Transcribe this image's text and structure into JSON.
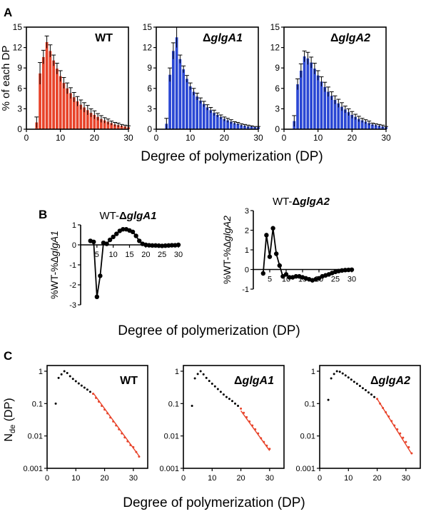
{
  "panel_labels": {
    "a": "A",
    "b": "B",
    "c": "C"
  },
  "colors": {
    "wt_bar": "#e8432a",
    "mutant_bar": "#2a47d4",
    "fit_line": "#e8432a",
    "ink": "#000000"
  },
  "chart_data": [
    {
      "id": "a1",
      "type": "bar",
      "title": "WT",
      "ylabel": "% of each DP",
      "xlim": [
        0,
        30
      ],
      "ylim": [
        0,
        15
      ],
      "xticks": [
        "0",
        "10",
        "20",
        "30"
      ],
      "yticks": [
        "0",
        "3",
        "6",
        "9",
        "12",
        "15"
      ],
      "x": [
        3,
        4,
        5,
        6,
        7,
        8,
        9,
        10,
        11,
        12,
        13,
        14,
        15,
        16,
        17,
        18,
        19,
        20,
        21,
        22,
        23,
        24,
        25,
        26,
        27,
        28,
        29,
        30
      ],
      "values": [
        1.0,
        8.2,
        10.6,
        12.8,
        11.5,
        10.1,
        8.9,
        7.8,
        6.8,
        6.0,
        5.3,
        4.7,
        4.1,
        3.6,
        3.2,
        2.8,
        2.4,
        2.1,
        1.8,
        1.5,
        1.3,
        1.1,
        0.9,
        0.7,
        0.6,
        0.5,
        0.4,
        0.3
      ],
      "errors": [
        0.8,
        1.6,
        1.0,
        0.9,
        0.9,
        0.8,
        0.8,
        0.8,
        0.8,
        0.8,
        0.8,
        0.7,
        0.7,
        0.7,
        0.7,
        0.7,
        0.6,
        0.6,
        0.5,
        0.5,
        0.4,
        0.4,
        0.3,
        0.3,
        0.3,
        0.2,
        0.2,
        0.2
      ]
    },
    {
      "id": "a2",
      "type": "bar",
      "title": "ΔglgA1",
      "xlim": [
        0,
        30
      ],
      "ylim": [
        0,
        15
      ],
      "xticks": [
        "0",
        "10",
        "20",
        "30"
      ],
      "yticks": [
        "0",
        "3",
        "6",
        "9",
        "12",
        "15"
      ],
      "x": [
        3,
        4,
        5,
        6,
        7,
        8,
        9,
        10,
        11,
        12,
        13,
        14,
        15,
        16,
        17,
        18,
        19,
        20,
        21,
        22,
        23,
        24,
        25,
        26,
        27,
        28,
        29,
        30
      ],
      "values": [
        0.8,
        8.0,
        11.5,
        13.5,
        10.3,
        8.8,
        7.4,
        6.3,
        5.5,
        4.8,
        4.2,
        3.7,
        3.2,
        2.8,
        2.4,
        2.1,
        1.8,
        1.5,
        1.3,
        1.1,
        0.9,
        0.8,
        0.6,
        0.5,
        0.4,
        0.4,
        0.3,
        0.3
      ],
      "errors": [
        0.8,
        1.0,
        1.2,
        1.5,
        0.6,
        0.5,
        0.5,
        0.5,
        0.5,
        0.5,
        0.4,
        0.4,
        0.4,
        0.4,
        0.4,
        0.3,
        0.3,
        0.3,
        0.3,
        0.3,
        0.2,
        0.2,
        0.2,
        0.2,
        0.2,
        0.1,
        0.1,
        0.1
      ]
    },
    {
      "id": "a3",
      "type": "bar",
      "title": "ΔglgA2",
      "xlim": [
        0,
        30
      ],
      "ylim": [
        0,
        15
      ],
      "xticks": [
        "0",
        "10",
        "20",
        "30"
      ],
      "yticks": [
        "0",
        "3",
        "6",
        "9",
        "12",
        "15"
      ],
      "x": [
        3,
        4,
        5,
        6,
        7,
        8,
        9,
        10,
        11,
        12,
        13,
        14,
        15,
        16,
        17,
        18,
        19,
        20,
        21,
        22,
        23,
        24,
        25,
        26,
        27,
        28,
        29,
        30
      ],
      "values": [
        1.2,
        6.6,
        8.6,
        10.7,
        10.4,
        9.8,
        8.9,
        7.9,
        7.0,
        6.2,
        5.5,
        4.9,
        4.3,
        3.8,
        3.3,
        2.9,
        2.5,
        2.1,
        1.8,
        1.5,
        1.3,
        1.1,
        0.9,
        0.7,
        0.6,
        0.5,
        0.4,
        0.3
      ],
      "errors": [
        0.8,
        0.8,
        1.0,
        0.8,
        0.9,
        0.8,
        0.8,
        0.7,
        0.7,
        0.7,
        0.7,
        0.6,
        0.6,
        0.6,
        0.6,
        0.5,
        0.5,
        0.5,
        0.4,
        0.4,
        0.3,
        0.3,
        0.3,
        0.2,
        0.2,
        0.2,
        0.2,
        0.1
      ]
    },
    {
      "id": "b1",
      "type": "line",
      "title": "WT-ΔglgA1",
      "ylabel": "%WT-%ΔglgA1",
      "xlim": [
        0,
        30
      ],
      "ylim": [
        -3,
        1
      ],
      "xticks": [
        "5",
        "10",
        "15",
        "20",
        "25",
        "30"
      ],
      "yticks": [
        "-3",
        "-2",
        "-1",
        "0",
        "1"
      ],
      "x": [
        3,
        4,
        5,
        6,
        7,
        8,
        9,
        10,
        11,
        12,
        13,
        14,
        15,
        16,
        17,
        18,
        19,
        20,
        21,
        22,
        23,
        24,
        25,
        26,
        27,
        28,
        29,
        30
      ],
      "y": [
        0.2,
        0.15,
        -2.6,
        -1.55,
        0.1,
        0.05,
        0.25,
        0.4,
        0.55,
        0.7,
        0.78,
        0.78,
        0.72,
        0.65,
        0.45,
        0.2,
        0.05,
        0.0,
        -0.02,
        -0.03,
        -0.03,
        -0.04,
        -0.05,
        -0.04,
        -0.03,
        -0.02,
        -0.02,
        0.0
      ]
    },
    {
      "id": "b2",
      "type": "line",
      "title": "WT-ΔglgA2",
      "ylabel": "%WT-%ΔglgA2",
      "xlim": [
        0,
        30
      ],
      "ylim": [
        -1,
        3
      ],
      "xticks": [
        "5",
        "10",
        "15",
        "20",
        "25",
        "30"
      ],
      "yticks": [
        "-1",
        "0",
        "1",
        "2",
        "3"
      ],
      "x": [
        3,
        4,
        5,
        6,
        7,
        8,
        9,
        10,
        11,
        12,
        13,
        14,
        15,
        16,
        17,
        18,
        19,
        20,
        21,
        22,
        23,
        24,
        25,
        26,
        27,
        28,
        29,
        30
      ],
      "y": [
        -0.2,
        1.75,
        0.65,
        2.1,
        0.8,
        0.2,
        -0.35,
        -0.25,
        -0.4,
        -0.4,
        -0.35,
        -0.35,
        -0.4,
        -0.45,
        -0.5,
        -0.55,
        -0.5,
        -0.45,
        -0.35,
        -0.3,
        -0.25,
        -0.18,
        -0.12,
        -0.08,
        -0.05,
        -0.03,
        -0.02,
        -0.01
      ]
    },
    {
      "id": "c1",
      "type": "scatter",
      "title": "WT",
      "ylabel": "N_de (DP)",
      "yscale": "log",
      "xlim": [
        0,
        35
      ],
      "ylim": [
        0.001,
        1.5
      ],
      "xticks": [
        "0",
        "10",
        "20",
        "30"
      ],
      "yticks": [
        "0.001",
        "0.01",
        "0.1",
        "1"
      ],
      "x": [
        3,
        4,
        5,
        6,
        7,
        8,
        9,
        10,
        11,
        12,
        13,
        14,
        15,
        16,
        17,
        18,
        19,
        20,
        21,
        22,
        23,
        24,
        25,
        26,
        27,
        28,
        29,
        30,
        31,
        32
      ],
      "y": [
        0.1,
        0.62,
        0.8,
        1.0,
        0.88,
        0.7,
        0.58,
        0.49,
        0.42,
        0.36,
        0.31,
        0.27,
        0.23,
        0.2,
        0.15,
        0.115,
        0.085,
        0.065,
        0.05,
        0.037,
        0.028,
        0.021,
        0.016,
        0.012,
        0.009,
        0.0068,
        0.0052,
        0.0045,
        0.0032,
        0.0023
      ],
      "fit": {
        "x": [
          16,
          32
        ],
        "y": [
          0.215,
          0.0024
        ]
      }
    },
    {
      "id": "c2",
      "type": "scatter",
      "title": "ΔglgA1",
      "yscale": "log",
      "xlim": [
        0,
        35
      ],
      "ylim": [
        0.001,
        1.5
      ],
      "xticks": [
        "0",
        "10",
        "20",
        "30"
      ],
      "yticks": [
        "0.001",
        "0.01",
        "0.1",
        "1"
      ],
      "x": [
        3,
        4,
        5,
        6,
        7,
        8,
        9,
        10,
        11,
        12,
        13,
        14,
        15,
        16,
        17,
        18,
        19,
        20,
        21,
        22,
        23,
        24,
        25,
        26,
        27,
        28,
        29,
        30
      ],
      "y": [
        0.085,
        0.6,
        0.82,
        1.0,
        0.8,
        0.62,
        0.5,
        0.41,
        0.34,
        0.28,
        0.23,
        0.19,
        0.16,
        0.14,
        0.12,
        0.1,
        0.085,
        0.07,
        0.052,
        0.038,
        0.028,
        0.021,
        0.016,
        0.012,
        0.0085,
        0.0065,
        0.005,
        0.004
      ],
      "fit": {
        "x": [
          20,
          30
        ],
        "y": [
          0.06,
          0.0035
        ]
      }
    },
    {
      "id": "c3",
      "type": "scatter",
      "title": "ΔglgA2",
      "yscale": "log",
      "xlim": [
        0,
        35
      ],
      "ylim": [
        0.001,
        1.5
      ],
      "xticks": [
        "0",
        "10",
        "20",
        "30"
      ],
      "yticks": [
        "0.001",
        "0.01",
        "0.1",
        "1"
      ],
      "x": [
        3,
        4,
        5,
        6,
        7,
        8,
        9,
        10,
        11,
        12,
        13,
        14,
        15,
        16,
        17,
        18,
        19,
        20,
        21,
        22,
        23,
        24,
        25,
        26,
        27,
        28,
        29,
        30,
        31,
        32
      ],
      "y": [
        0.13,
        0.6,
        0.82,
        1.0,
        0.96,
        0.85,
        0.74,
        0.64,
        0.55,
        0.47,
        0.41,
        0.35,
        0.3,
        0.26,
        0.22,
        0.19,
        0.16,
        0.14,
        0.1,
        0.073,
        0.054,
        0.04,
        0.029,
        0.021,
        0.016,
        0.012,
        0.0088,
        0.0065,
        0.0045,
        0.0029
      ],
      "fit": {
        "x": [
          20,
          32
        ],
        "y": [
          0.14,
          0.0028
        ]
      }
    }
  ],
  "xlabels": {
    "a": "Degree of polymerization (DP)",
    "b": "Degree of polymerization (DP)",
    "c": "Degree of polymerization (DP)"
  }
}
